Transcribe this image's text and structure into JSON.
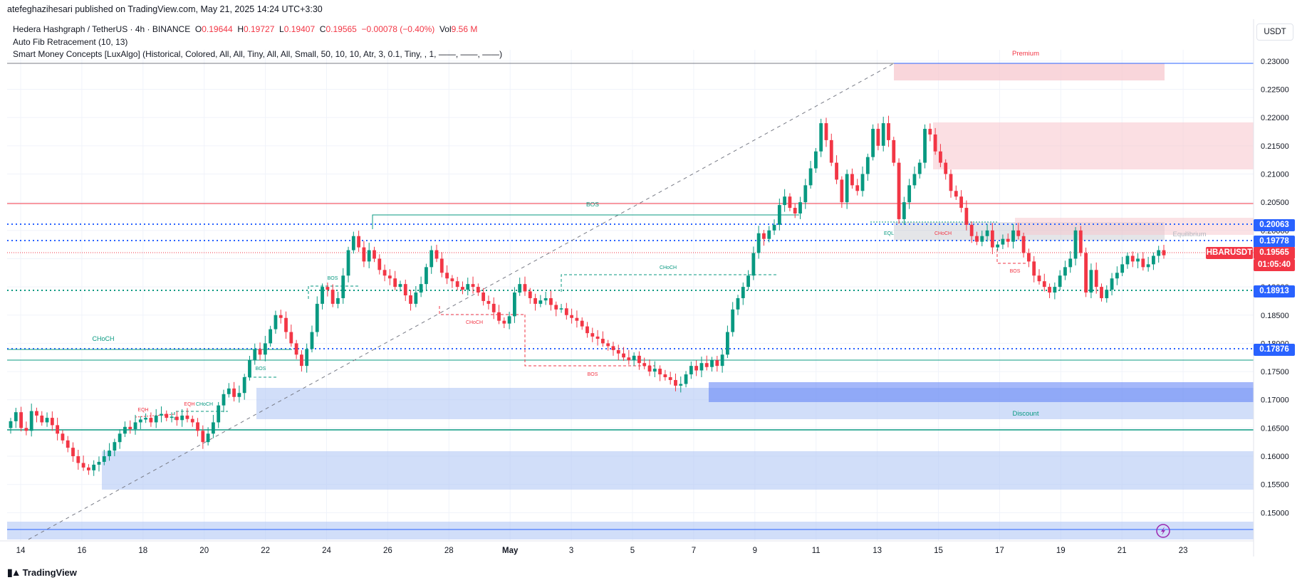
{
  "header": {
    "text": "atefeghazihesari published on TradingView.com, May 21, 2025 14:24 UTC+3:30"
  },
  "legend": {
    "symbol": "Hedera Hashgraph / TetherUS · 4h · BINANCE",
    "o_label": "O",
    "o": "0.19644",
    "h_label": "H",
    "h": "0.19727",
    "l_label": "L",
    "l": "0.19407",
    "c_label": "C",
    "c": "0.19565",
    "chg": "−0.00078 (−0.40%)",
    "vol_label": "Vol",
    "vol": "9.56 M",
    "line2": "Auto Fib Retracement (10, 13)",
    "line3": "Smart Money Concepts [LuxAlgo] (Historical, Colored, All, All, Tiny, All, All, Small, 50, 10, 10, Atr, 3, 0.1, Tiny, , 1, ——, ——, ——)"
  },
  "currency": "USDT",
  "footer": {
    "brand": "TradingView"
  },
  "tags": {
    "t1": "0.20063",
    "t2": "0.19778",
    "symbol": "HBARUSDT",
    "price": "0.19565",
    "countdown": "01:05:40",
    "t3": "0.18913",
    "t4": "0.17876"
  },
  "colors": {
    "up": "#089981",
    "down": "#f23645",
    "blue": "#2962ff",
    "premium": "#f7c5cc",
    "discount": "#b3c8f5"
  },
  "chart_data": {
    "type": "candlestick",
    "pair": "HBARUSDT",
    "timeframe": "4h",
    "ylim": [
      0.145,
      0.232
    ],
    "y_ticks": [
      "0.23000",
      "0.22500",
      "0.22000",
      "0.21500",
      "0.21000",
      "0.20500",
      "0.20000",
      "0.19500",
      "0.19000",
      "0.18500",
      "0.18000",
      "0.17500",
      "0.17000",
      "0.16500",
      "0.16000",
      "0.15500",
      "0.15000"
    ],
    "x_ticks": [
      "14",
      "16",
      "18",
      "20",
      "22",
      "24",
      "26",
      "28",
      "May",
      "3",
      "5",
      "7",
      "9",
      "11",
      "13",
      "15",
      "17",
      "19",
      "21",
      "23"
    ],
    "closes": [
      0.1662,
      0.1678,
      0.165,
      0.1645,
      0.168,
      0.1672,
      0.166,
      0.1668,
      0.1655,
      0.164,
      0.1628,
      0.1615,
      0.16,
      0.1588,
      0.158,
      0.1575,
      0.1585,
      0.159,
      0.16,
      0.161,
      0.1625,
      0.164,
      0.1652,
      0.1648,
      0.166,
      0.1665,
      0.1668,
      0.166,
      0.1672,
      0.1675,
      0.1668,
      0.167,
      0.1664,
      0.1672,
      0.1666,
      0.166,
      0.1645,
      0.1625,
      0.164,
      0.166,
      0.169,
      0.171,
      0.172,
      0.1705,
      0.1712,
      0.174,
      0.177,
      0.179,
      0.178,
      0.18,
      0.1825,
      0.185,
      0.1845,
      0.182,
      0.18,
      0.178,
      0.176,
      0.179,
      0.182,
      0.187,
      0.19,
      0.1895,
      0.187,
      0.188,
      0.192,
      0.1965,
      0.199,
      0.197,
      0.1945,
      0.1965,
      0.195,
      0.193,
      0.192,
      0.1915,
      0.19,
      0.1905,
      0.1885,
      0.187,
      0.189,
      0.1905,
      0.1935,
      0.1965,
      0.195,
      0.1925,
      0.1915,
      0.191,
      0.19,
      0.1895,
      0.1905,
      0.19,
      0.189,
      0.1875,
      0.187,
      0.1855,
      0.184,
      0.1835,
      0.1848,
      0.189,
      0.1905,
      0.1892,
      0.188,
      0.187,
      0.1876,
      0.188,
      0.1868,
      0.186,
      0.1862,
      0.185,
      0.1845,
      0.184,
      0.183,
      0.1818,
      0.1812,
      0.1808,
      0.18,
      0.1795,
      0.1788,
      0.1782,
      0.1775,
      0.177,
      0.1778,
      0.1765,
      0.176,
      0.175,
      0.1755,
      0.1745,
      0.174,
      0.1735,
      0.1725,
      0.1728,
      0.1745,
      0.176,
      0.1752,
      0.1765,
      0.1758,
      0.177,
      0.176,
      0.178,
      0.182,
      0.186,
      0.188,
      0.19,
      0.192,
      0.196,
      0.1995,
      0.1985,
      0.2,
      0.201,
      0.2045,
      0.206,
      0.204,
      0.203,
      0.205,
      0.208,
      0.211,
      0.214,
      0.219,
      0.216,
      0.212,
      0.209,
      0.205,
      0.21,
      0.208,
      0.207,
      0.21,
      0.213,
      0.218,
      0.215,
      0.219,
      0.216,
      0.212,
      0.202,
      0.205,
      0.208,
      0.21,
      0.212,
      0.218,
      0.217,
      0.214,
      0.212,
      0.21,
      0.207,
      0.206,
      0.204,
      0.201,
      0.199,
      0.198,
      0.199,
      0.2,
      0.197,
      0.1975,
      0.1985,
      0.198,
      0.2,
      0.199,
      0.196,
      0.1945,
      0.192,
      0.191,
      0.19,
      0.189,
      0.19,
      0.192,
      0.1935,
      0.195,
      0.2,
      0.196,
      0.189,
      0.193,
      0.19,
      0.188,
      0.1895,
      0.1915,
      0.1925,
      0.194,
      0.1955,
      0.1945,
      0.195,
      0.1935,
      0.194,
      0.1955,
      0.1965,
      0.1956
    ],
    "annotations": [
      "Premium",
      "Equilibrium",
      "Discount",
      "BOS",
      "CHoCH",
      "EQH",
      "EQL"
    ]
  }
}
